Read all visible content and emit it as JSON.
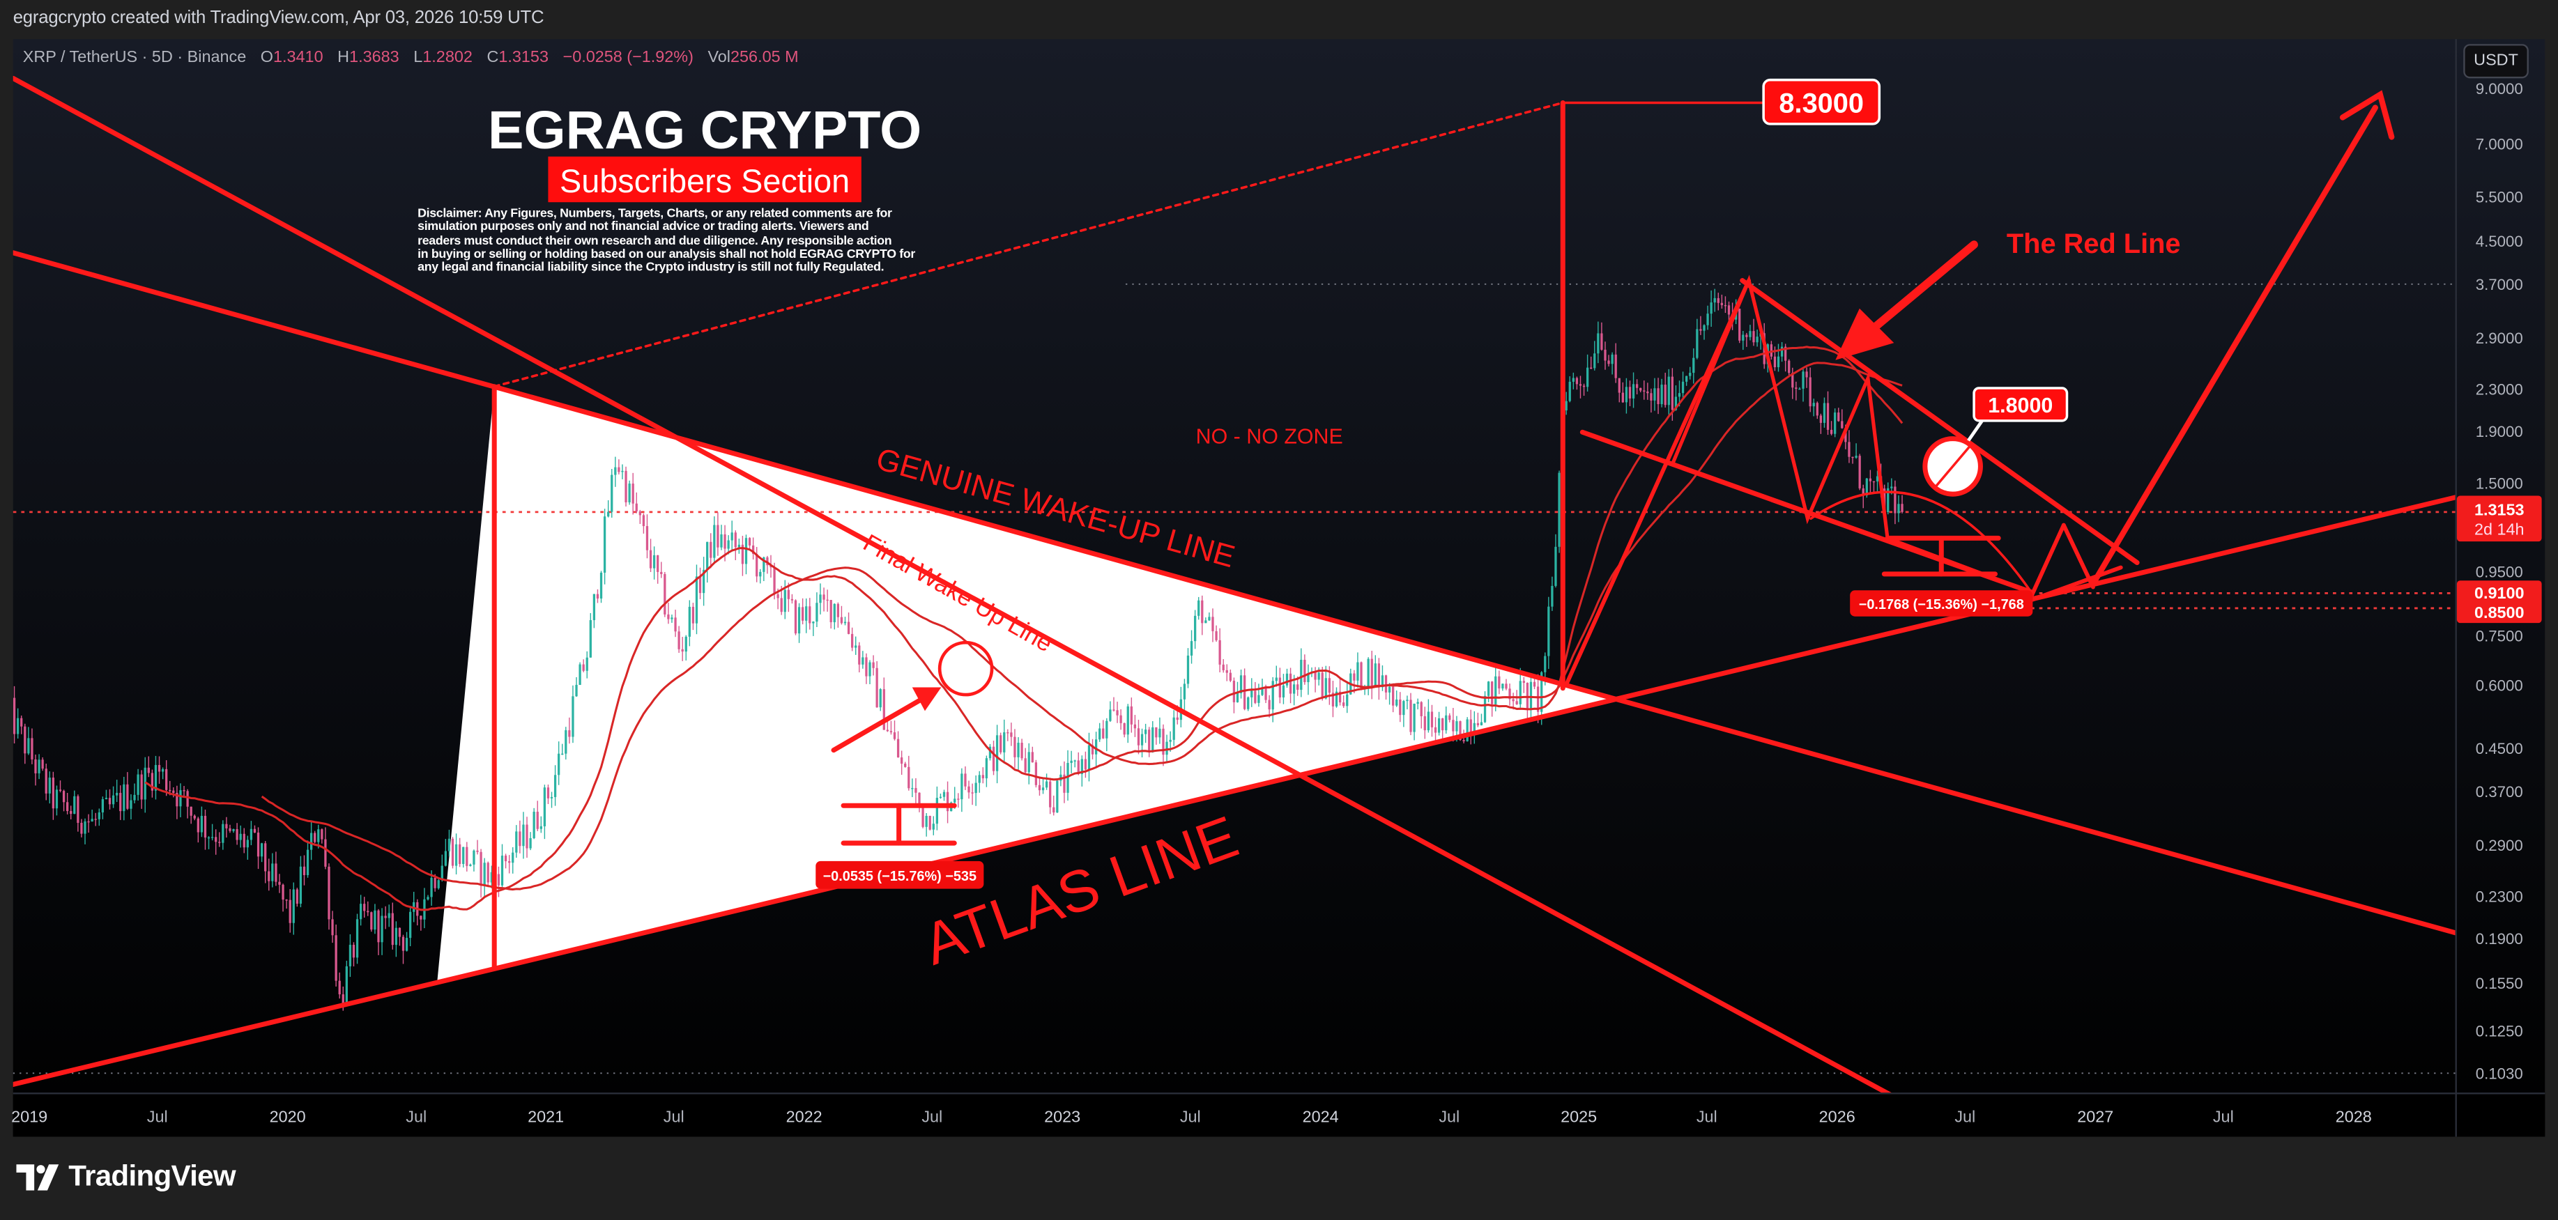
{
  "header": {
    "attribution": "egragcrypto created with TradingView.com, Apr 03, 2026 10:59 UTC"
  },
  "legend": {
    "symbol": "XRP / TetherUS · 5D · Binance",
    "open_label": "O",
    "open": "1.3410",
    "high_label": "H",
    "high": "1.3683",
    "low_label": "L",
    "low": "1.2802",
    "close_label": "C",
    "close": "1.3153",
    "change": "−0.0258 (−1.92%)",
    "vol_label": "Vol",
    "vol": "256.05 M"
  },
  "currency_button": "USDT",
  "branding": {
    "title": "EGRAG CRYPTO",
    "subtitle": "Subscribers Section"
  },
  "disclaimer": [
    "Disclaimer: Any Figures, Numbers, Targets, Charts, or any related comments are for",
    "simulation purposes only and not financial advice or trading alerts. Viewers and",
    "readers must conduct their own research and due diligence. Any responsible action",
    "in buying or selling or holding based on our analysis shall not hold EGRAG CRYPTO for",
    "any legal and financial liability since the Crypto industry is still not fully Regulated."
  ],
  "annotations": {
    "target_label": "8.3000",
    "level_label": "1.8000",
    "genuine_line": "GENUINE WAKE-UP LINE",
    "final_line": "Final Wake Up Line",
    "no_zone": "NO - NO ZONE",
    "atlas_line": "ATLAS LINE",
    "red_line": "The Red Line",
    "measure_left": "−0.0535 (−15.76%) −535",
    "measure_right": "−0.1768 (−15.36%) −1,768"
  },
  "price_axis": {
    "current_price": "1.3153",
    "countdown": "2d 14h",
    "level_a": "0.9100",
    "level_b": "0.8500"
  },
  "footer": {
    "logo_text": "TradingView"
  },
  "colors": {
    "up": "#2bb3a3",
    "down": "#d9588e",
    "annotation": "#ff1a1a",
    "ma": "#d92626",
    "background_top": "#171b26",
    "background_bottom": "#000000"
  },
  "chart_data": {
    "type": "candlestick",
    "symbol": "XRP / TetherUS",
    "interval": "5D",
    "y_scale": "log",
    "y_ticks": [
      9.0,
      7.0,
      5.5,
      4.5,
      3.7,
      2.9,
      2.3,
      1.9,
      1.5,
      0.95,
      0.75,
      0.6,
      0.45,
      0.37,
      0.29,
      0.23,
      0.19,
      0.155,
      0.125,
      0.103
    ],
    "y_tick_labels": [
      "9.0000",
      "7.0000",
      "5.5000",
      "4.5000",
      "3.7000",
      "2.9000",
      "2.3000",
      "1.9000",
      "1.5000",
      "0.9500",
      "0.7500",
      "0.6000",
      "0.4500",
      "0.3700",
      "0.2900",
      "0.2300",
      "0.1900",
      "0.1550",
      "0.1250",
      "0.1030"
    ],
    "x_ticks": [
      {
        "label": "2019",
        "date": "2019-01-01"
      },
      {
        "label": "Jul",
        "date": "2019-07-01"
      },
      {
        "label": "2020",
        "date": "2020-01-01"
      },
      {
        "label": "Jul",
        "date": "2020-07-01"
      },
      {
        "label": "2021",
        "date": "2021-01-01"
      },
      {
        "label": "Jul",
        "date": "2021-07-01"
      },
      {
        "label": "2022",
        "date": "2022-01-01"
      },
      {
        "label": "Jul",
        "date": "2022-07-01"
      },
      {
        "label": "2023",
        "date": "2023-01-01"
      },
      {
        "label": "Jul",
        "date": "2023-07-01"
      },
      {
        "label": "2024",
        "date": "2024-01-01"
      },
      {
        "label": "Jul",
        "date": "2024-07-01"
      },
      {
        "label": "2025",
        "date": "2025-01-01"
      },
      {
        "label": "Jul",
        "date": "2025-07-01"
      },
      {
        "label": "2026",
        "date": "2026-01-01"
      },
      {
        "label": "Jul",
        "date": "2026-07-01"
      },
      {
        "label": "2027",
        "date": "2027-01-01"
      },
      {
        "label": "Jul",
        "date": "2027-07-01"
      },
      {
        "label": "2028",
        "date": "2028-01-01"
      }
    ],
    "price_path": [
      [
        "2018-12-01",
        0.54
      ],
      [
        "2019-02-01",
        0.36
      ],
      [
        "2019-04-01",
        0.32
      ],
      [
        "2019-07-01",
        0.41
      ],
      [
        "2019-09-10",
        0.31
      ],
      [
        "2019-11-15",
        0.29
      ],
      [
        "2020-01-05",
        0.21
      ],
      [
        "2020-02-15",
        0.33
      ],
      [
        "2020-03-15",
        0.142
      ],
      [
        "2020-04-15",
        0.21
      ],
      [
        "2020-06-15",
        0.19
      ],
      [
        "2020-08-15",
        0.29
      ],
      [
        "2020-10-15",
        0.25
      ],
      [
        "2020-12-10",
        0.31
      ],
      [
        "2021-01-10",
        0.38
      ],
      [
        "2021-03-01",
        0.7
      ],
      [
        "2021-04-10",
        1.69
      ],
      [
        "2021-05-20",
        1.17
      ],
      [
        "2021-07-10",
        0.7
      ],
      [
        "2021-08-25",
        1.17
      ],
      [
        "2021-10-20",
        1.08
      ],
      [
        "2021-12-20",
        0.81
      ],
      [
        "2022-02-15",
        0.87
      ],
      [
        "2022-04-10",
        0.6
      ],
      [
        "2022-05-20",
        0.41
      ],
      [
        "2022-06-20",
        0.33
      ],
      [
        "2022-09-10",
        0.41
      ],
      [
        "2022-10-20",
        0.48
      ],
      [
        "2022-12-20",
        0.36
      ],
      [
        "2023-03-20",
        0.52
      ],
      [
        "2023-05-30",
        0.45
      ],
      [
        "2023-07-15",
        0.87
      ],
      [
        "2023-08-20",
        0.6
      ],
      [
        "2023-10-20",
        0.56
      ],
      [
        "2023-12-10",
        0.65
      ],
      [
        "2024-01-20",
        0.56
      ],
      [
        "2024-03-10",
        0.65
      ],
      [
        "2024-05-10",
        0.52
      ],
      [
        "2024-07-10",
        0.48
      ],
      [
        "2024-09-10",
        0.6
      ],
      [
        "2024-11-05",
        0.56
      ],
      [
        "2024-11-25",
        0.94
      ],
      [
        "2024-12-10",
        2.3
      ],
      [
        "2025-01-10",
        2.45
      ],
      [
        "2025-01-30",
        3.06
      ],
      [
        "2025-02-25",
        2.27
      ],
      [
        "2025-04-10",
        2.19
      ],
      [
        "2025-05-20",
        2.27
      ],
      [
        "2025-06-25",
        3.06
      ],
      [
        "2025-07-20",
        3.42
      ],
      [
        "2025-08-30",
        2.95
      ],
      [
        "2025-10-10",
        2.64
      ],
      [
        "2025-12-01",
        2.19
      ],
      [
        "2026-01-05",
        1.89
      ],
      [
        "2026-02-05",
        1.51
      ],
      [
        "2026-03-05",
        1.41
      ],
      [
        "2026-04-03",
        1.3153
      ]
    ],
    "moving_averages": [
      "ma-fast",
      "ma-slow"
    ],
    "price_lines": [
      1.3153,
      0.91,
      0.85,
      3.7,
      0.103
    ],
    "grid": false
  }
}
